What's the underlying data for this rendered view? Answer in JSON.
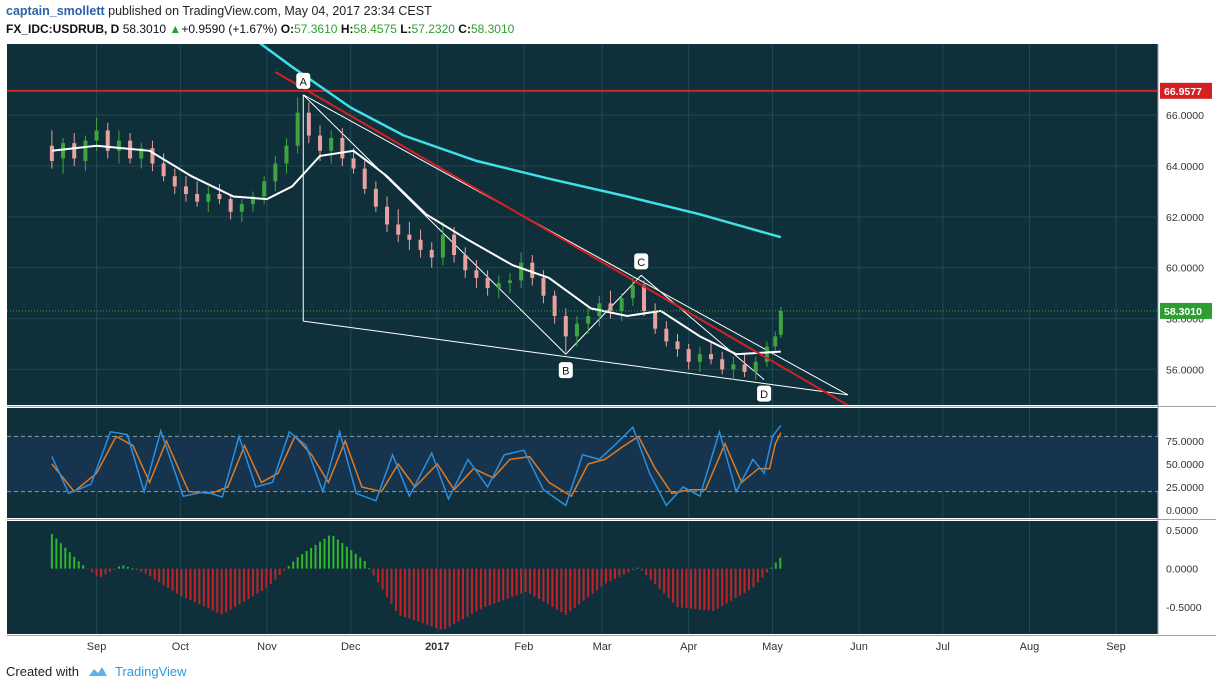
{
  "header": {
    "author": "captain_smollett",
    "published": "published on TradingView.com, May 04, 2017 23:34 CEST",
    "symbol": "FX_IDC:USDRUB, D",
    "last": "58.3010",
    "change": "+0.9590 (+1.67%)",
    "o_label": "O:",
    "o_val": "57.3610",
    "h_label": "H:",
    "h_val": "58.4575",
    "l_label": "L:",
    "l_val": "57.2320",
    "c_label": "C:",
    "c_val": "58.3010"
  },
  "footer": {
    "created_with": "Created with",
    "brand": "TradingView"
  },
  "colors": {
    "background": "#0f2f3a",
    "stoch_band": "#17344f",
    "up_candle": "#3fa43f",
    "down_candle": "#e8a0a0",
    "trendline": "#d42020",
    "ma_long": "#3fe0e8",
    "ma_short": "#ffffff",
    "stoch_k": "#2a8fe0",
    "stoch_d": "#e07a20",
    "hist_pos": "#2fb52f",
    "hist_neg": "#c0242a",
    "price_tag": "#2e9e32",
    "level_tag": "#d42020"
  },
  "chart_data": {
    "type": "candlestick",
    "price_axis": {
      "ticks": [
        "66.0000",
        "64.0000",
        "62.0000",
        "60.0000",
        "58.0000",
        "56.0000"
      ],
      "ylim": [
        54.6,
        68.8
      ]
    },
    "price_tags": {
      "last": "58.3010",
      "level": "66.9577"
    },
    "time_axis": [
      "Sep",
      "Oct",
      "Nov",
      "Dec",
      "2017",
      "Feb",
      "Mar",
      "Apr",
      "May",
      "Jun",
      "Jul",
      "Aug",
      "Sep"
    ],
    "horizontal_level": 66.9577,
    "pattern_points": [
      {
        "label": "A",
        "date": "2016-11-14",
        "price": 66.8
      },
      {
        "label": "B",
        "date": "2017-02-16",
        "price": 56.6
      },
      {
        "label": "C",
        "date": "2017-03-15",
        "price": 59.7
      },
      {
        "label": "D",
        "date": "2017-04-28",
        "price": 55.6
      }
    ],
    "trendline": {
      "from": {
        "date": "2016-11-04",
        "price": 67.7
      },
      "to": {
        "date": "2017-05-31",
        "price": 54.4
      }
    },
    "wedge_lower": {
      "from": {
        "date": "2016-11-14",
        "price": 57.9
      },
      "to": {
        "date": "2017-05-28",
        "price": 55.0
      }
    },
    "candles_ohlc": [
      [
        "2016-08-16",
        64.8,
        65.4,
        63.9,
        64.2
      ],
      [
        "2016-08-20",
        64.3,
        65.1,
        63.7,
        64.9
      ],
      [
        "2016-08-24",
        64.9,
        65.3,
        64.0,
        64.3
      ],
      [
        "2016-08-28",
        64.2,
        65.2,
        63.8,
        65.0
      ],
      [
        "2016-09-01",
        65.0,
        65.9,
        64.6,
        65.4
      ],
      [
        "2016-09-05",
        65.4,
        65.7,
        64.3,
        64.6
      ],
      [
        "2016-09-09",
        64.6,
        65.4,
        64.1,
        65.0
      ],
      [
        "2016-09-13",
        65.0,
        65.3,
        64.1,
        64.3
      ],
      [
        "2016-09-17",
        64.3,
        64.9,
        63.9,
        64.7
      ],
      [
        "2016-09-21",
        64.7,
        65.0,
        63.8,
        64.1
      ],
      [
        "2016-09-25",
        64.1,
        64.5,
        63.4,
        63.6
      ],
      [
        "2016-09-29",
        63.6,
        63.9,
        62.9,
        63.2
      ],
      [
        "2016-10-03",
        63.2,
        63.6,
        62.6,
        62.9
      ],
      [
        "2016-10-07",
        62.9,
        63.4,
        62.4,
        62.6
      ],
      [
        "2016-10-11",
        62.6,
        63.2,
        62.2,
        62.9
      ],
      [
        "2016-10-15",
        62.9,
        63.3,
        62.5,
        62.7
      ],
      [
        "2016-10-19",
        62.7,
        62.9,
        61.9,
        62.2
      ],
      [
        "2016-10-23",
        62.2,
        62.7,
        61.8,
        62.5
      ],
      [
        "2016-10-27",
        62.5,
        63.0,
        62.2,
        62.8
      ],
      [
        "2016-10-31",
        62.8,
        63.6,
        62.5,
        63.4
      ],
      [
        "2016-11-04",
        63.4,
        64.4,
        63.0,
        64.1
      ],
      [
        "2016-11-08",
        64.1,
        65.1,
        63.7,
        64.8
      ],
      [
        "2016-11-12",
        64.8,
        66.7,
        64.5,
        66.1
      ],
      [
        "2016-11-16",
        66.1,
        66.5,
        64.9,
        65.2
      ],
      [
        "2016-11-20",
        65.2,
        65.6,
        64.2,
        64.6
      ],
      [
        "2016-11-24",
        64.6,
        65.4,
        64.1,
        65.1
      ],
      [
        "2016-11-28",
        65.1,
        65.5,
        64.0,
        64.3
      ],
      [
        "2016-12-02",
        64.3,
        64.7,
        63.7,
        63.9
      ],
      [
        "2016-12-06",
        63.9,
        64.2,
        62.9,
        63.1
      ],
      [
        "2016-12-10",
        63.1,
        63.4,
        62.2,
        62.4
      ],
      [
        "2016-12-14",
        62.4,
        62.8,
        61.4,
        61.7
      ],
      [
        "2016-12-18",
        61.7,
        62.3,
        61.0,
        61.3
      ],
      [
        "2016-12-22",
        61.3,
        61.8,
        60.7,
        61.1
      ],
      [
        "2016-12-26",
        61.1,
        61.5,
        60.4,
        60.7
      ],
      [
        "2016-12-30",
        60.7,
        61.0,
        60.0,
        60.4
      ],
      [
        "2017-01-03",
        60.4,
        61.8,
        60.1,
        61.3
      ],
      [
        "2017-01-07",
        61.3,
        61.6,
        60.2,
        60.5
      ],
      [
        "2017-01-11",
        60.5,
        60.8,
        59.6,
        59.9
      ],
      [
        "2017-01-15",
        59.9,
        60.3,
        59.2,
        59.6
      ],
      [
        "2017-01-19",
        59.6,
        59.9,
        58.9,
        59.2
      ],
      [
        "2017-01-23",
        59.2,
        59.7,
        58.8,
        59.4
      ],
      [
        "2017-01-27",
        59.4,
        59.8,
        59.0,
        59.5
      ],
      [
        "2017-01-31",
        59.5,
        60.6,
        59.2,
        60.2
      ],
      [
        "2017-02-04",
        60.2,
        60.5,
        59.3,
        59.6
      ],
      [
        "2017-02-08",
        59.6,
        59.9,
        58.6,
        58.9
      ],
      [
        "2017-02-12",
        58.9,
        59.1,
        57.8,
        58.1
      ],
      [
        "2017-02-16",
        58.1,
        58.4,
        56.7,
        57.3
      ],
      [
        "2017-02-20",
        57.3,
        58.1,
        56.9,
        57.8
      ],
      [
        "2017-02-24",
        57.8,
        58.4,
        57.4,
        58.1
      ],
      [
        "2017-02-28",
        58.1,
        58.9,
        57.7,
        58.6
      ],
      [
        "2017-03-04",
        58.6,
        59.1,
        58.0,
        58.3
      ],
      [
        "2017-03-08",
        58.3,
        59.0,
        57.9,
        58.8
      ],
      [
        "2017-03-12",
        58.8,
        59.7,
        58.5,
        59.3
      ],
      [
        "2017-03-16",
        59.3,
        59.5,
        58.1,
        58.3
      ],
      [
        "2017-03-20",
        58.3,
        58.6,
        57.4,
        57.6
      ],
      [
        "2017-03-24",
        57.6,
        57.9,
        56.9,
        57.1
      ],
      [
        "2017-03-28",
        57.1,
        57.4,
        56.5,
        56.8
      ],
      [
        "2017-04-01",
        56.8,
        57.0,
        56.0,
        56.3
      ],
      [
        "2017-04-05",
        56.3,
        56.9,
        55.9,
        56.6
      ],
      [
        "2017-04-09",
        56.6,
        57.1,
        56.2,
        56.4
      ],
      [
        "2017-04-13",
        56.4,
        56.7,
        55.8,
        56.0
      ],
      [
        "2017-04-17",
        56.0,
        56.5,
        55.6,
        56.2
      ],
      [
        "2017-04-21",
        56.2,
        56.6,
        55.7,
        55.9
      ],
      [
        "2017-04-25",
        55.9,
        56.5,
        55.6,
        56.3
      ],
      [
        "2017-04-29",
        56.3,
        57.1,
        56.1,
        56.9
      ],
      [
        "2017-05-02",
        56.9,
        57.5,
        56.7,
        57.3
      ],
      [
        "2017-05-04",
        57.361,
        58.4575,
        57.232,
        58.301
      ]
    ],
    "ma_short": [
      [
        "2016-08-16",
        64.6
      ],
      [
        "2016-09-01",
        64.8
      ],
      [
        "2016-09-20",
        64.6
      ],
      [
        "2016-10-05",
        63.6
      ],
      [
        "2016-10-20",
        62.8
      ],
      [
        "2016-11-01",
        62.7
      ],
      [
        "2016-11-10",
        63.2
      ],
      [
        "2016-11-20",
        64.4
      ],
      [
        "2016-12-02",
        64.6
      ],
      [
        "2016-12-14",
        63.6
      ],
      [
        "2016-12-28",
        62.1
      ],
      [
        "2017-01-12",
        61.1
      ],
      [
        "2017-01-28",
        60.1
      ],
      [
        "2017-02-10",
        59.6
      ],
      [
        "2017-02-25",
        58.4
      ],
      [
        "2017-03-10",
        58.1
      ],
      [
        "2017-03-22",
        58.3
      ],
      [
        "2017-04-05",
        57.3
      ],
      [
        "2017-04-18",
        56.6
      ],
      [
        "2017-05-04",
        56.7
      ]
    ],
    "ma_long": [
      [
        "2016-10-20",
        69.6
      ],
      [
        "2016-11-10",
        67.9
      ],
      [
        "2016-12-01",
        66.3
      ],
      [
        "2016-12-20",
        65.2
      ],
      [
        "2017-01-15",
        64.2
      ],
      [
        "2017-02-10",
        63.5
      ],
      [
        "2017-03-10",
        62.8
      ],
      [
        "2017-04-05",
        62.1
      ],
      [
        "2017-05-04",
        61.2
      ]
    ],
    "stoch": {
      "axis_ticks": [
        "75.0000",
        "50.0000",
        "25.0000",
        "0.0000"
      ],
      "band": [
        20,
        80
      ],
      "k": [
        [
          "2016-08-16",
          58
        ],
        [
          "2016-08-22",
          18
        ],
        [
          "2016-08-30",
          28
        ],
        [
          "2016-09-06",
          85
        ],
        [
          "2016-09-12",
          82
        ],
        [
          "2016-09-18",
          20
        ],
        [
          "2016-09-24",
          86
        ],
        [
          "2016-10-02",
          15
        ],
        [
          "2016-10-10",
          20
        ],
        [
          "2016-10-16",
          14
        ],
        [
          "2016-10-22",
          80
        ],
        [
          "2016-10-28",
          25
        ],
        [
          "2016-11-03",
          30
        ],
        [
          "2016-11-09",
          85
        ],
        [
          "2016-11-15",
          70
        ],
        [
          "2016-11-21",
          20
        ],
        [
          "2016-11-27",
          85
        ],
        [
          "2016-12-03",
          18
        ],
        [
          "2016-12-10",
          10
        ],
        [
          "2016-12-16",
          60
        ],
        [
          "2016-12-22",
          15
        ],
        [
          "2016-12-30",
          62
        ],
        [
          "2017-01-05",
          12
        ],
        [
          "2017-01-12",
          55
        ],
        [
          "2017-01-19",
          25
        ],
        [
          "2017-01-25",
          60
        ],
        [
          "2017-02-01",
          65
        ],
        [
          "2017-02-08",
          22
        ],
        [
          "2017-02-16",
          5
        ],
        [
          "2017-02-22",
          60
        ],
        [
          "2017-02-28",
          55
        ],
        [
          "2017-03-06",
          72
        ],
        [
          "2017-03-12",
          90
        ],
        [
          "2017-03-18",
          40
        ],
        [
          "2017-03-24",
          5
        ],
        [
          "2017-03-30",
          25
        ],
        [
          "2017-04-05",
          15
        ],
        [
          "2017-04-12",
          85
        ],
        [
          "2017-04-18",
          20
        ],
        [
          "2017-04-24",
          55
        ],
        [
          "2017-04-28",
          40
        ],
        [
          "2017-05-01",
          80
        ],
        [
          "2017-05-04",
          92
        ]
      ],
      "d": [
        [
          "2016-08-16",
          50
        ],
        [
          "2016-08-24",
          20
        ],
        [
          "2016-09-01",
          40
        ],
        [
          "2016-09-08",
          80
        ],
        [
          "2016-09-14",
          70
        ],
        [
          "2016-09-20",
          30
        ],
        [
          "2016-09-26",
          75
        ],
        [
          "2016-10-04",
          20
        ],
        [
          "2016-10-12",
          18
        ],
        [
          "2016-10-18",
          25
        ],
        [
          "2016-10-24",
          70
        ],
        [
          "2016-10-30",
          30
        ],
        [
          "2016-11-05",
          40
        ],
        [
          "2016-11-11",
          80
        ],
        [
          "2016-11-17",
          60
        ],
        [
          "2016-11-23",
          30
        ],
        [
          "2016-11-29",
          75
        ],
        [
          "2016-12-05",
          25
        ],
        [
          "2016-12-12",
          20
        ],
        [
          "2016-12-18",
          50
        ],
        [
          "2016-12-24",
          25
        ],
        [
          "2017-01-01",
          50
        ],
        [
          "2017-01-07",
          22
        ],
        [
          "2017-01-14",
          45
        ],
        [
          "2017-01-21",
          35
        ],
        [
          "2017-01-27",
          55
        ],
        [
          "2017-02-03",
          58
        ],
        [
          "2017-02-10",
          30
        ],
        [
          "2017-02-18",
          15
        ],
        [
          "2017-02-24",
          50
        ],
        [
          "2017-03-02",
          55
        ],
        [
          "2017-03-08",
          68
        ],
        [
          "2017-03-14",
          80
        ],
        [
          "2017-03-20",
          45
        ],
        [
          "2017-03-26",
          18
        ],
        [
          "2017-04-01",
          22
        ],
        [
          "2017-04-07",
          22
        ],
        [
          "2017-04-14",
          72
        ],
        [
          "2017-04-20",
          30
        ],
        [
          "2017-04-26",
          45
        ],
        [
          "2017-04-30",
          45
        ],
        [
          "2017-05-02",
          72
        ],
        [
          "2017-05-04",
          84
        ]
      ]
    },
    "histogram": {
      "axis_ticks": [
        "0.5000",
        "0.0000",
        "-0.5000"
      ],
      "ylim": [
        -0.85,
        0.62
      ],
      "knots": [
        [
          "2016-08-16",
          0.45
        ],
        [
          "2016-08-26",
          0.08
        ],
        [
          "2016-09-02",
          -0.12
        ],
        [
          "2016-09-10",
          0.05
        ],
        [
          "2016-09-18",
          -0.05
        ],
        [
          "2016-10-01",
          -0.35
        ],
        [
          "2016-10-16",
          -0.6
        ],
        [
          "2016-11-01",
          -0.25
        ],
        [
          "2016-11-12",
          0.15
        ],
        [
          "2016-11-24",
          0.45
        ],
        [
          "2016-12-06",
          0.1
        ],
        [
          "2016-12-18",
          -0.6
        ],
        [
          "2017-01-03",
          -0.8
        ],
        [
          "2017-01-18",
          -0.5
        ],
        [
          "2017-02-02",
          -0.3
        ],
        [
          "2017-02-16",
          -0.6
        ],
        [
          "2017-03-02",
          -0.2
        ],
        [
          "2017-03-14",
          0.02
        ],
        [
          "2017-03-28",
          -0.5
        ],
        [
          "2017-04-10",
          -0.55
        ],
        [
          "2017-04-24",
          -0.25
        ],
        [
          "2017-05-04",
          0.15
        ]
      ]
    }
  }
}
